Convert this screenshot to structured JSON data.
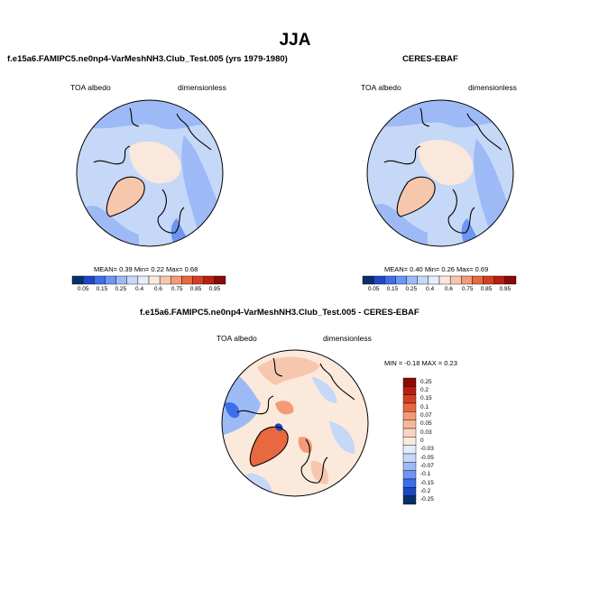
{
  "season": "JJA",
  "panels": {
    "model": {
      "title": "f.e15a6.FAMIPC5.ne0np4-VarMeshNH3.Club_Test.005 (yrs 1979-1980)",
      "variable": "TOA albedo",
      "units": "dimensionless",
      "stats": "MEAN=   0.39  Min=   0.22  Max=   0.68"
    },
    "obs": {
      "title": "CERES-EBAF",
      "variable": "TOA albedo",
      "units": "dimensionless",
      "stats": "MEAN=   0.40  Min=   0.26  Max=   0.69"
    },
    "diff": {
      "title": "f.e15a6.FAMIPC5.ne0np4-VarMeshNH3.Club_Test.005 - CERES-EBAF",
      "variable": "TOA albedo",
      "units": "dimensionless",
      "stats": "MIN =  -0.18 MAX =   0.23"
    }
  },
  "colorbar_main": {
    "labels": [
      "0.05",
      "0.15",
      "0.25",
      "0.4",
      "0.6",
      "0.75",
      "0.85",
      "0.95"
    ],
    "colors": [
      "#08306b",
      "#1f47c4",
      "#3d6ee8",
      "#6d95f2",
      "#9dbaf7",
      "#c6d8f8",
      "#e6eefb",
      "#fae8dc",
      "#f7c7ad",
      "#f39b79",
      "#e8683f",
      "#d53e23",
      "#b71f12",
      "#8a0a06"
    ]
  },
  "colorbar_diff": {
    "labels": [
      "0.25",
      "0.2",
      "0.15",
      "0.1",
      "0.07",
      "0.05",
      "0.03",
      "0",
      "-0.03",
      "-0.05",
      "-0.07",
      "-0.1",
      "-0.15",
      "-0.2",
      "-0.25"
    ],
    "colors": [
      "#8a0a06",
      "#b71f12",
      "#d53e23",
      "#e8683f",
      "#f39b79",
      "#f7b89a",
      "#f9d6c4",
      "#fbeadc",
      "#e3edfb",
      "#c6d8f8",
      "#9dbaf7",
      "#6d95f2",
      "#3d6ee8",
      "#1f47c4",
      "#08306b"
    ]
  }
}
